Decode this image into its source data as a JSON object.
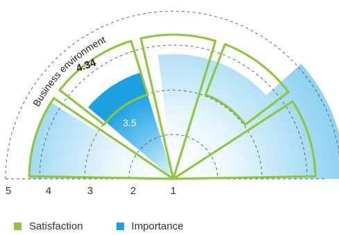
{
  "chart_data": {
    "type": "radial-bar",
    "title": "",
    "axis": {
      "ticks": [
        "5",
        "4",
        "3",
        "2",
        "1"
      ],
      "min": 1,
      "max": 5
    },
    "segments": [
      {
        "label": "Business environment",
        "satisfaction": 4.34,
        "importance": 3.5,
        "satisfaction_label": "4.34",
        "importance_label": "3.5"
      },
      {
        "label": "",
        "satisfaction": null,
        "importance": null
      },
      {
        "label": "",
        "satisfaction": null,
        "importance": null
      },
      {
        "label": "",
        "satisfaction": null,
        "importance": null
      },
      {
        "label": "",
        "satisfaction": null,
        "importance": null
      }
    ],
    "legend": [
      {
        "name": "Satisfaction",
        "color": "#8dc63f"
      },
      {
        "name": "Importance",
        "color": "#1ba1e2"
      }
    ]
  },
  "colors": {
    "satisfaction_outline": "#8dc63f",
    "importance_fill": "#1ba1e2",
    "importance_light": "#e6f5fc",
    "grid": "#555555"
  }
}
